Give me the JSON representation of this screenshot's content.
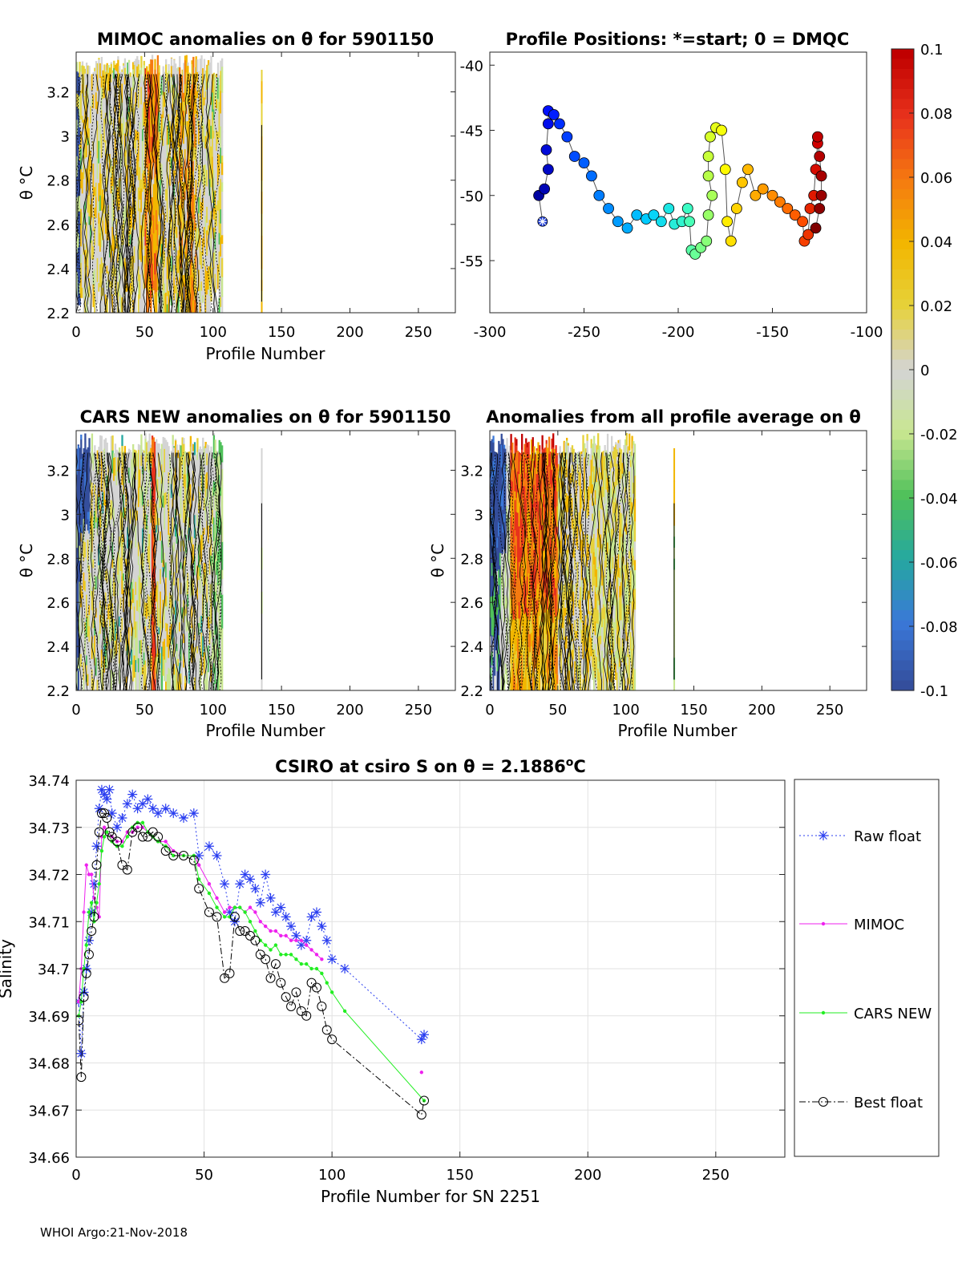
{
  "footer": "WHOI Argo:21-Nov-2018",
  "colorbar": {
    "ticks": [
      "0.1",
      "0.08",
      "0.06",
      "0.04",
      "0.02",
      "0",
      "-0.02",
      "-0.04",
      "-0.06",
      "-0.08",
      "-0.1"
    ],
    "colors": [
      "#c00000",
      "#e8321c",
      "#f57a10",
      "#f2b600",
      "#e6d23a",
      "#d4d4d4",
      "#c8e690",
      "#4fc05a",
      "#25a8a0",
      "#3a78d8",
      "#344e9c"
    ]
  },
  "chart_data": [
    {
      "type": "heatmap",
      "title": "MIMOC anomalies on θ  for 5901150",
      "xlabel": "Profile Number",
      "ylabel": "θ °C",
      "xlim": [
        0,
        277
      ],
      "ylim": [
        2.2,
        3.38
      ],
      "xticks": [
        "0",
        "50",
        "100",
        "150",
        "200",
        "250"
      ],
      "yticks": [
        "2.2",
        "2.4",
        "2.6",
        "2.8",
        "3",
        "3.2"
      ],
      "anomaly_band_profiles": [
        [
          0,
          107
        ],
        [
          135,
          136
        ]
      ]
    },
    {
      "type": "scatter",
      "title": "Profile Positions: *=start; 0 = DMQC",
      "xlim": [
        -300,
        -100
      ],
      "ylim": [
        -59,
        -39
      ],
      "xticks": [
        "-300",
        "-250",
        "-200",
        "-150",
        "-100"
      ],
      "yticks": [
        "-40",
        "-45",
        "-50",
        "-55"
      ],
      "track": [
        [
          -272,
          -52.0
        ],
        [
          -274,
          -50.0
        ],
        [
          -271,
          -49.5
        ],
        [
          -269,
          -48.0
        ],
        [
          -270,
          -46.5
        ],
        [
          -269,
          -44.5
        ],
        [
          -269,
          -43.5
        ],
        [
          -266,
          -43.8
        ],
        [
          -263,
          -44.5
        ],
        [
          -259,
          -45.5
        ],
        [
          -255,
          -47.0
        ],
        [
          -250,
          -47.5
        ],
        [
          -246,
          -48.5
        ],
        [
          -242,
          -50.0
        ],
        [
          -237,
          -51.0
        ],
        [
          -232,
          -52.0
        ],
        [
          -227,
          -52.5
        ],
        [
          -222,
          -51.5
        ],
        [
          -217,
          -51.8
        ],
        [
          -213,
          -51.5
        ],
        [
          -209,
          -52.0
        ],
        [
          -205,
          -51.0
        ],
        [
          -202,
          -52.2
        ],
        [
          -198,
          -52.0
        ],
        [
          -195,
          -51.0
        ],
        [
          -194,
          -52.0
        ],
        [
          -193,
          -54.2
        ],
        [
          -191,
          -54.5
        ],
        [
          -188,
          -54.0
        ],
        [
          -185,
          -53.5
        ],
        [
          -184,
          -51.5
        ],
        [
          -182,
          -50.0
        ],
        [
          -184,
          -48.5
        ],
        [
          -184,
          -47.0
        ],
        [
          -183,
          -45.5
        ],
        [
          -180,
          -44.8
        ],
        [
          -177,
          -45.0
        ],
        [
          -175,
          -48.0
        ],
        [
          -174,
          -52.0
        ],
        [
          -172,
          -53.5
        ],
        [
          -169,
          -51.0
        ],
        [
          -166,
          -49.0
        ],
        [
          -163,
          -48.0
        ],
        [
          -159,
          -50.0
        ],
        [
          -155,
          -49.5
        ],
        [
          -150,
          -50.0
        ],
        [
          -146,
          -50.5
        ],
        [
          -142,
          -51.0
        ],
        [
          -138,
          -51.5
        ],
        [
          -134,
          -52.0
        ],
        [
          -133,
          -53.5
        ],
        [
          -131,
          -53.0
        ],
        [
          -130,
          -51.0
        ],
        [
          -128,
          -50.0
        ],
        [
          -127,
          -48.0
        ],
        [
          -126,
          -46.0
        ],
        [
          -126,
          -45.5
        ],
        [
          -125,
          -47.0
        ],
        [
          -124,
          -48.5
        ],
        [
          -124,
          -50.0
        ],
        [
          -125,
          -51.0
        ],
        [
          -127,
          -52.5
        ]
      ]
    },
    {
      "type": "heatmap",
      "title": "CARS NEW anomalies on θ for 5901150",
      "xlabel": "Profile Number",
      "ylabel": "θ °C",
      "xlim": [
        0,
        277
      ],
      "ylim": [
        2.2,
        3.38
      ],
      "xticks": [
        "0",
        "50",
        "100",
        "150",
        "200",
        "250"
      ],
      "yticks": [
        "2.2",
        "2.4",
        "2.6",
        "2.8",
        "3",
        "3.2"
      ]
    },
    {
      "type": "heatmap",
      "title": "Anomalies from all profile average on θ",
      "xlabel": "Profile Number",
      "ylabel": "θ °C",
      "xlim": [
        0,
        277
      ],
      "ylim": [
        2.2,
        3.38
      ],
      "xticks": [
        "0",
        "50",
        "100",
        "150",
        "200",
        "250"
      ],
      "yticks": [
        "2.2",
        "2.4",
        "2.6",
        "2.8",
        "3",
        "3.2"
      ]
    },
    {
      "type": "line",
      "title_main": "CSIRO at csiro S on θ = 2.1886",
      "title_sup": "o",
      "title_unit": "C",
      "xlabel": "Profile Number for SN 2251",
      "ylabel": "Salinity",
      "xlim": [
        0,
        277
      ],
      "ylim": [
        34.66,
        34.74
      ],
      "grid": true,
      "legend_position": "right",
      "xticks": [
        "0",
        "50",
        "100",
        "150",
        "200",
        "250"
      ],
      "yticks": [
        "34.66",
        "34.67",
        "34.68",
        "34.69",
        "34.7",
        "34.71",
        "34.72",
        "34.73",
        "34.74"
      ],
      "series": [
        {
          "name": "Raw float",
          "color": "#2a3ef0",
          "x": [
            1,
            2,
            3,
            4,
            5,
            6,
            7,
            8,
            9,
            10,
            11,
            12,
            13,
            14,
            16,
            18,
            20,
            22,
            24,
            26,
            28,
            30,
            32,
            35,
            38,
            42,
            46,
            48,
            52,
            55,
            58,
            60,
            62,
            64,
            66,
            68,
            70,
            72,
            74,
            76,
            78,
            80,
            82,
            84,
            86,
            88,
            90,
            92,
            94,
            96,
            98,
            100,
            105,
            135,
            136
          ],
          "y": [
            34.693,
            34.682,
            34.695,
            34.7,
            34.706,
            34.712,
            34.718,
            34.726,
            34.734,
            34.738,
            34.737,
            34.736,
            34.738,
            34.733,
            34.73,
            34.732,
            34.735,
            34.737,
            34.734,
            34.735,
            34.736,
            34.734,
            34.733,
            34.734,
            34.733,
            34.732,
            34.733,
            34.724,
            34.726,
            34.724,
            34.718,
            34.712,
            34.71,
            34.718,
            34.72,
            34.719,
            34.717,
            34.714,
            34.72,
            34.715,
            34.712,
            34.713,
            34.711,
            34.709,
            34.707,
            34.705,
            34.706,
            34.711,
            34.712,
            34.709,
            34.706,
            34.702,
            34.7,
            34.685,
            34.686
          ]
        },
        {
          "name": "MIMOC",
          "color": "#ee22ee",
          "x": [
            1,
            2,
            3,
            4,
            5,
            6,
            7,
            8,
            9,
            10,
            11,
            12,
            14,
            16,
            18,
            20,
            22,
            24,
            26,
            28,
            30,
            32,
            35,
            38,
            42,
            46,
            48,
            52,
            55,
            58,
            60,
            62,
            64,
            66,
            68,
            70,
            72,
            74,
            76,
            78,
            80,
            82,
            84,
            86,
            88,
            90,
            92,
            94,
            96
          ],
          "y": [
            34.693,
            34.7,
            34.712,
            34.722,
            34.72,
            34.72,
            34.715,
            34.713,
            34.711,
            34.728,
            34.73,
            34.729,
            34.728,
            34.727,
            34.727,
            34.729,
            34.729,
            34.73,
            34.73,
            34.729,
            34.728,
            34.727,
            34.727,
            34.725,
            34.724,
            34.724,
            34.722,
            34.718,
            34.715,
            34.712,
            34.713,
            34.713,
            34.713,
            34.712,
            34.713,
            34.712,
            34.71,
            34.709,
            34.708,
            34.708,
            34.707,
            34.707,
            34.706,
            34.706,
            34.706,
            34.705,
            34.704,
            34.703,
            34.702
          ],
          "extra_points": [
            [
              135,
              34.678
            ]
          ]
        },
        {
          "name": "CARS NEW",
          "color": "#22ee22",
          "x": [
            1,
            2,
            3,
            4,
            5,
            6,
            7,
            8,
            9,
            10,
            11,
            12,
            14,
            16,
            18,
            20,
            22,
            24,
            26,
            28,
            30,
            32,
            35,
            38,
            42,
            46,
            48,
            52,
            55,
            58,
            60,
            62,
            64,
            66,
            68,
            70,
            72,
            74,
            76,
            78,
            80,
            82,
            84,
            86,
            88,
            90,
            92,
            94,
            96,
            98,
            100,
            105,
            136
          ],
          "y": [
            34.69,
            34.693,
            34.7,
            34.705,
            34.712,
            34.714,
            34.71,
            34.714,
            34.718,
            34.725,
            34.728,
            34.729,
            34.727,
            34.726,
            34.726,
            34.728,
            34.73,
            34.731,
            34.731,
            34.729,
            34.728,
            34.727,
            34.726,
            34.724,
            34.724,
            34.724,
            34.719,
            34.716,
            34.713,
            34.711,
            34.711,
            34.713,
            34.713,
            34.712,
            34.71,
            34.708,
            34.706,
            34.705,
            34.704,
            34.705,
            34.703,
            34.703,
            34.703,
            34.702,
            34.701,
            34.701,
            34.7,
            34.7,
            34.699,
            34.697,
            34.695,
            34.691,
            34.672
          ]
        },
        {
          "name": "Best float",
          "color": "#000000",
          "x": [
            1,
            2,
            3,
            4,
            5,
            6,
            7,
            8,
            9,
            10,
            11,
            12,
            13,
            14,
            16,
            18,
            20,
            22,
            24,
            26,
            28,
            30,
            32,
            35,
            38,
            42,
            46,
            48,
            52,
            55,
            58,
            60,
            62,
            64,
            66,
            68,
            70,
            72,
            74,
            76,
            78,
            80,
            82,
            84,
            86,
            88,
            90,
            92,
            94,
            96,
            98,
            100,
            135,
            136
          ],
          "y": [
            34.689,
            34.677,
            34.694,
            34.699,
            34.703,
            34.708,
            34.711,
            34.722,
            34.729,
            34.733,
            34.733,
            34.732,
            34.729,
            34.728,
            34.727,
            34.722,
            34.721,
            34.729,
            34.73,
            34.728,
            34.728,
            34.729,
            34.728,
            34.725,
            34.724,
            34.724,
            34.723,
            34.717,
            34.712,
            34.711,
            34.698,
            34.699,
            34.711,
            34.708,
            34.708,
            34.707,
            34.706,
            34.703,
            34.702,
            34.698,
            34.701,
            34.697,
            34.694,
            34.692,
            34.695,
            34.691,
            34.69,
            34.697,
            34.696,
            34.692,
            34.687,
            34.685,
            34.669,
            34.672
          ]
        }
      ]
    }
  ]
}
